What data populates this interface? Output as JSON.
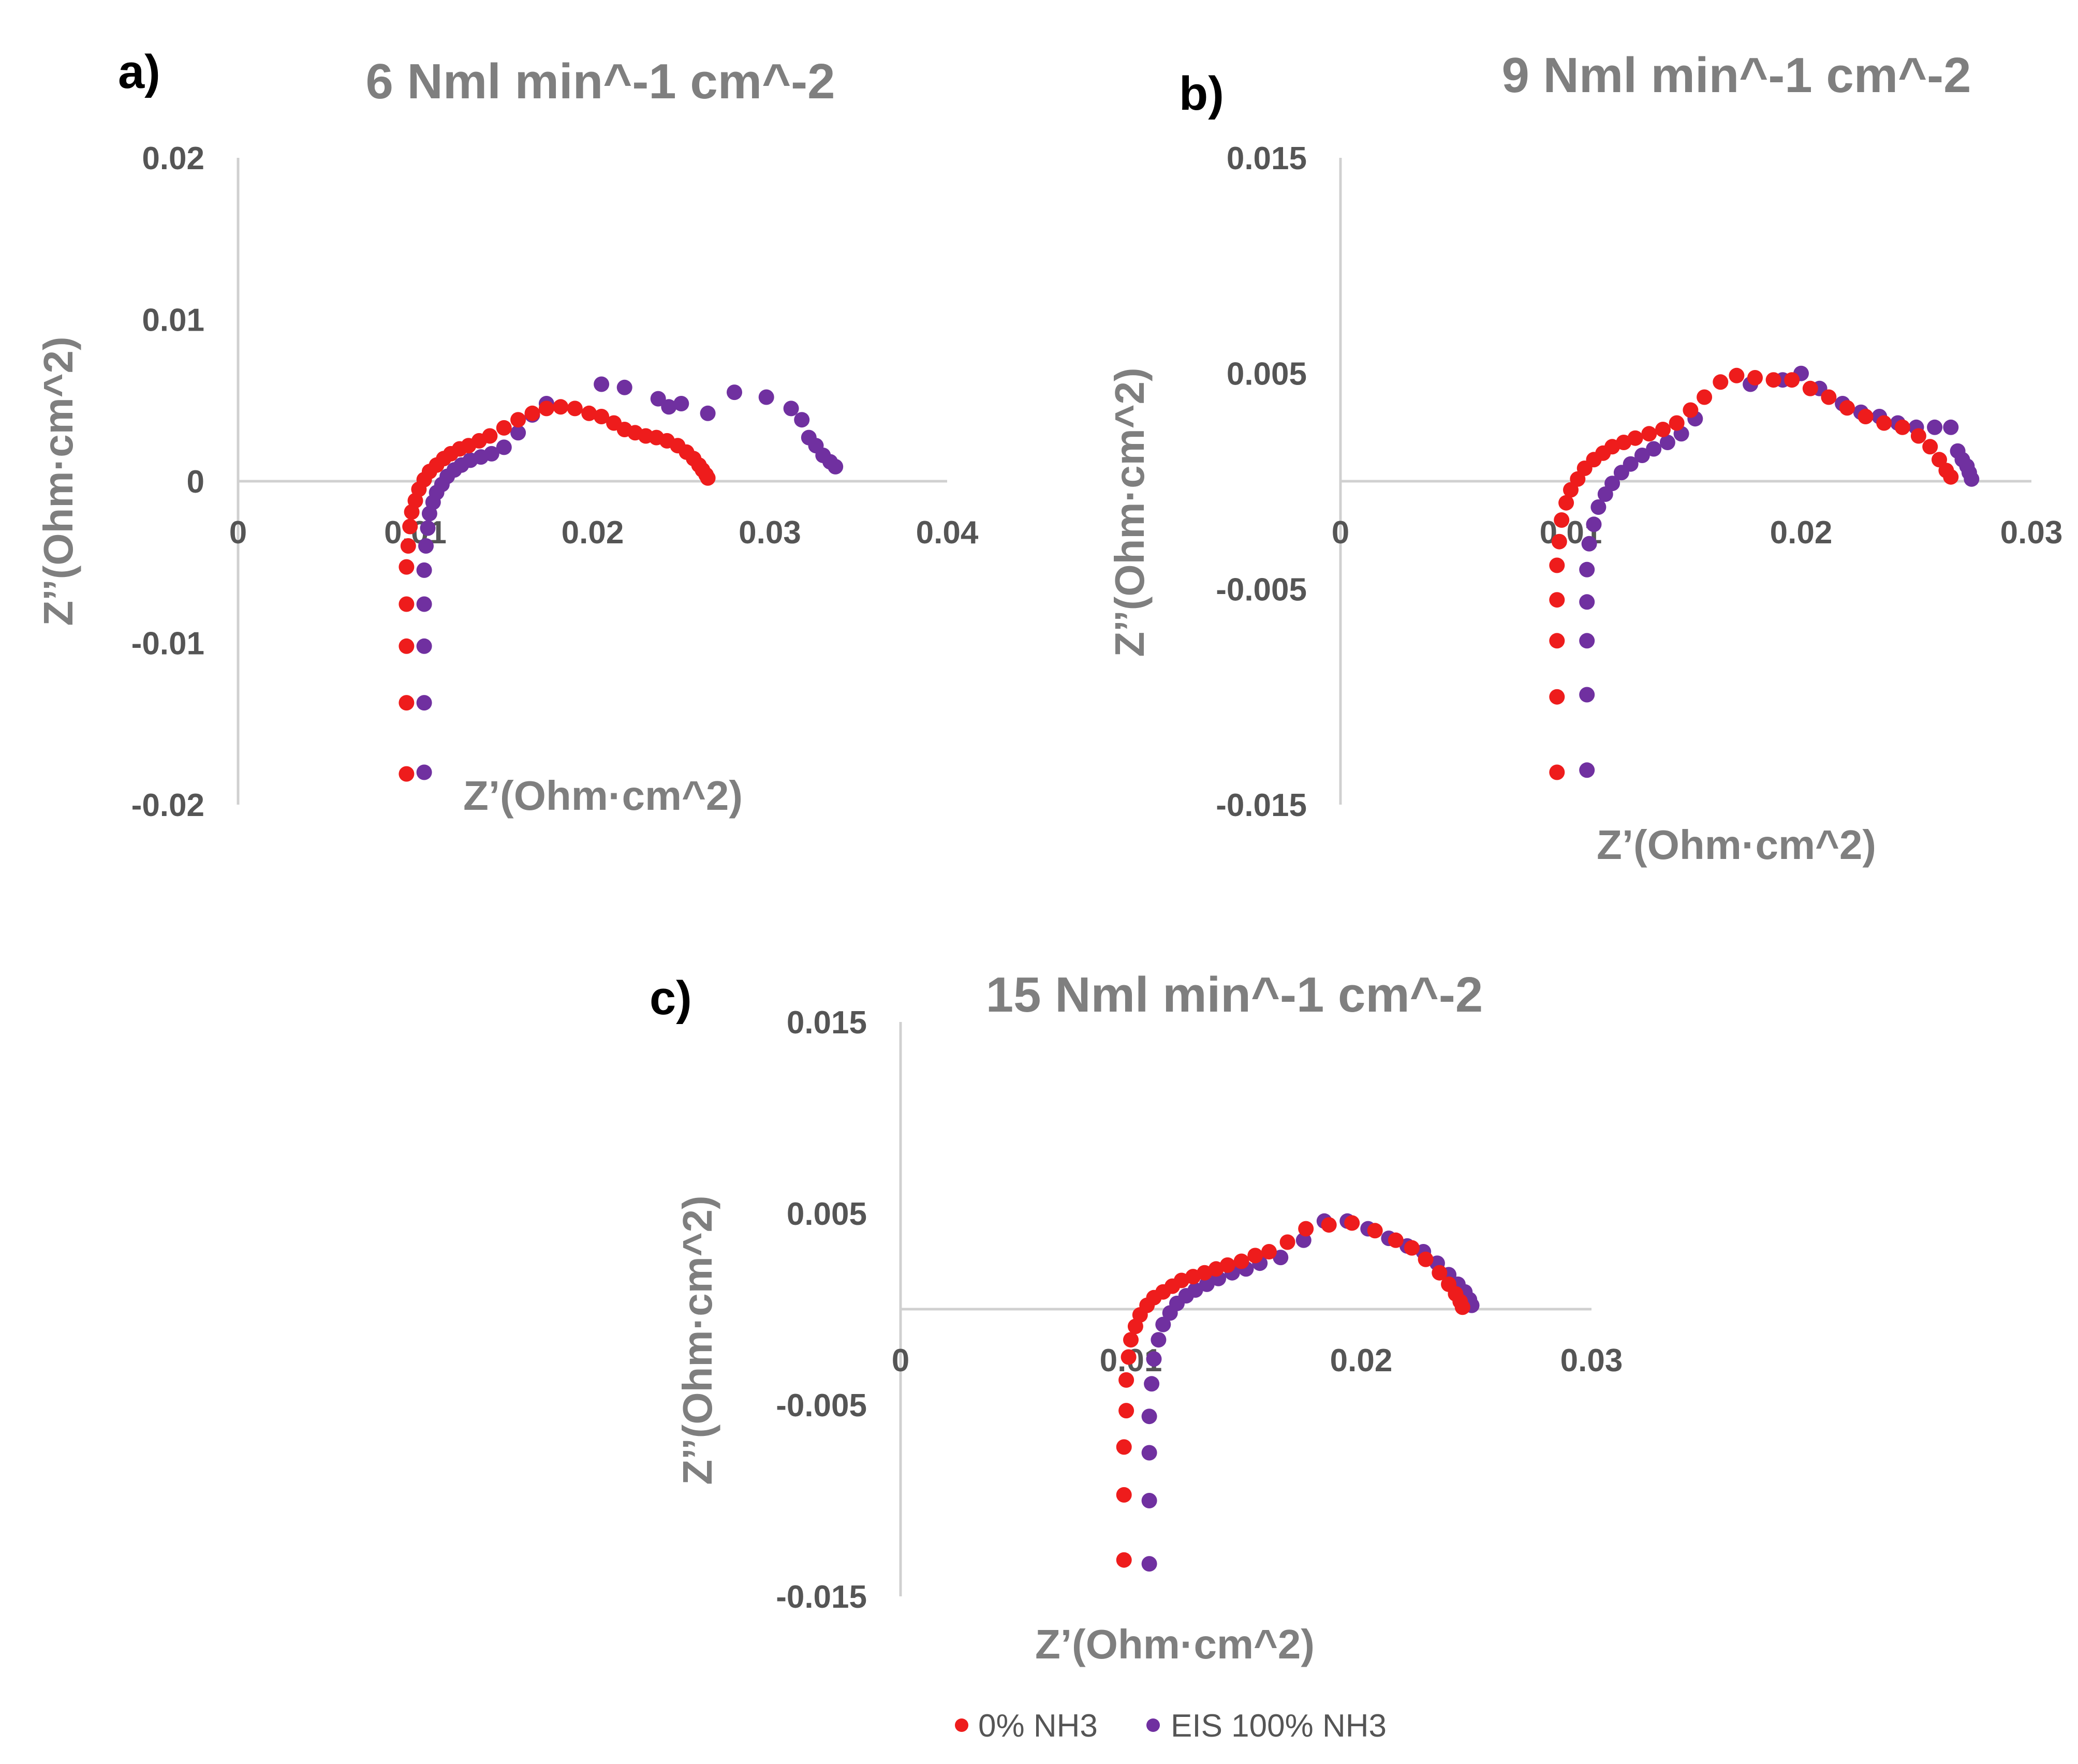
{
  "chart_data": [
    {
      "type": "scatter",
      "panel": "a)",
      "title": "6 Nml min^-1 cm^-2",
      "xlabel": "Z’(Ohm·cm^2)",
      "ylabel": "Z’’(Ohm·cm^2)",
      "xlim": [
        0,
        0.04
      ],
      "ylim": [
        -0.02,
        0.02
      ],
      "xticks": [
        {
          "v": 0,
          "label": "0"
        },
        {
          "v": 0.01,
          "label": "0.01"
        },
        {
          "v": 0.02,
          "label": "0.02"
        },
        {
          "v": 0.03,
          "label": "0.03"
        },
        {
          "v": 0.04,
          "label": "0.04"
        }
      ],
      "yticks": [
        {
          "v": 0.02,
          "label": "0.02"
        },
        {
          "v": 0.01,
          "label": "0.01"
        },
        {
          "v": 0,
          "label": "0"
        },
        {
          "v": -0.01,
          "label": "-0.01"
        },
        {
          "v": -0.02,
          "label": "-0.02"
        }
      ],
      "series": [
        {
          "name": "0% NH3",
          "x": [
            0.0095,
            0.0095,
            0.0095,
            0.0095,
            0.0095,
            0.0096,
            0.0097,
            0.0098,
            0.01,
            0.0102,
            0.0105,
            0.0108,
            0.0112,
            0.0116,
            0.012,
            0.0125,
            0.013,
            0.0136,
            0.0142,
            0.015,
            0.0158,
            0.0166,
            0.0174,
            0.0182,
            0.019,
            0.0198,
            0.0205,
            0.0212,
            0.0218,
            0.0224,
            0.023,
            0.0236,
            0.0242,
            0.0248,
            0.0253,
            0.0257,
            0.026,
            0.0262,
            0.0264,
            0.0265
          ],
          "y": [
            -0.0181,
            -0.0137,
            -0.0102,
            -0.0076,
            -0.0053,
            -0.004,
            -0.0028,
            -0.0019,
            -0.0012,
            -0.0005,
            0.0001,
            0.0006,
            0.001,
            0.0014,
            0.0017,
            0.002,
            0.0022,
            0.0025,
            0.0028,
            0.0033,
            0.0038,
            0.0042,
            0.0045,
            0.0046,
            0.0045,
            0.0042,
            0.004,
            0.0036,
            0.0032,
            0.003,
            0.0028,
            0.0027,
            0.0025,
            0.0022,
            0.0018,
            0.0014,
            0.001,
            0.0007,
            0.0004,
            0.0002
          ]
        },
        {
          "name": "EIS 100% NH3",
          "x": [
            0.0105,
            0.0105,
            0.0105,
            0.0105,
            0.0105,
            0.0106,
            0.0107,
            0.0108,
            0.011,
            0.0112,
            0.0115,
            0.0118,
            0.0122,
            0.0126,
            0.0131,
            0.0137,
            0.0143,
            0.015,
            0.0158,
            0.0166,
            0.0174,
            0.0205,
            0.0218,
            0.0237,
            0.0243,
            0.025,
            0.0265,
            0.028,
            0.0298,
            0.0312,
            0.0318,
            0.0322,
            0.0326,
            0.033,
            0.0334,
            0.0337
          ],
          "y": [
            -0.018,
            -0.0137,
            -0.0102,
            -0.0076,
            -0.0055,
            -0.004,
            -0.0029,
            -0.002,
            -0.0013,
            -0.0007,
            -0.0002,
            0.0003,
            0.0007,
            0.001,
            0.0013,
            0.0015,
            0.0017,
            0.0021,
            0.003,
            0.0041,
            0.0048,
            0.006,
            0.0058,
            0.0051,
            0.0046,
            0.0048,
            0.0042,
            0.0055,
            0.0052,
            0.0045,
            0.0038,
            0.0027,
            0.0022,
            0.0016,
            0.0012,
            0.0009
          ]
        }
      ]
    },
    {
      "type": "scatter",
      "panel": "b)",
      "title": "9 Nml min^-1 cm^-2",
      "xlabel": "Z’(Ohm·cm^2)",
      "ylabel": "Z’’(Ohm·cm^2)",
      "xlim": [
        0,
        0.03
      ],
      "ylim": [
        -0.015,
        0.015
      ],
      "xticks": [
        {
          "v": 0,
          "label": "0"
        },
        {
          "v": 0.01,
          "label": "0.01"
        },
        {
          "v": 0.02,
          "label": "0.02"
        },
        {
          "v": 0.03,
          "label": "0.03"
        }
      ],
      "yticks": [
        {
          "v": 0.015,
          "label": "0.015"
        },
        {
          "v": 0.005,
          "label": "0.005"
        },
        {
          "v": -0.005,
          "label": "-0.005"
        },
        {
          "v": -0.015,
          "label": "-0.015"
        }
      ],
      "series": [
        {
          "name": "0% NH3",
          "x": [
            0.0094,
            0.0094,
            0.0094,
            0.0094,
            0.0094,
            0.0095,
            0.0096,
            0.0098,
            0.01,
            0.0103,
            0.0106,
            0.011,
            0.0114,
            0.0118,
            0.0123,
            0.0128,
            0.0134,
            0.014,
            0.0146,
            0.0152,
            0.0158,
            0.0165,
            0.0172,
            0.018,
            0.0188,
            0.0196,
            0.0204,
            0.0212,
            0.022,
            0.0228,
            0.0236,
            0.0244,
            0.0251,
            0.0256,
            0.026,
            0.0263,
            0.0265
          ],
          "y": [
            -0.0135,
            -0.01,
            -0.0074,
            -0.0055,
            -0.0039,
            -0.0028,
            -0.0018,
            -0.001,
            -0.0004,
            0.0001,
            0.0006,
            0.001,
            0.0013,
            0.0016,
            0.0018,
            0.002,
            0.0022,
            0.0024,
            0.0027,
            0.0033,
            0.0039,
            0.0046,
            0.0049,
            0.0048,
            0.0047,
            0.0047,
            0.0043,
            0.0039,
            0.0034,
            0.003,
            0.0027,
            0.0025,
            0.0021,
            0.0016,
            0.001,
            0.0005,
            0.0002
          ]
        },
        {
          "name": "EIS 100% NH3",
          "x": [
            0.0107,
            0.0107,
            0.0107,
            0.0107,
            0.0107,
            0.0108,
            0.011,
            0.0112,
            0.0115,
            0.0118,
            0.0122,
            0.0126,
            0.0131,
            0.0136,
            0.0142,
            0.0148,
            0.0154,
            0.0178,
            0.0192,
            0.02,
            0.0208,
            0.0218,
            0.0226,
            0.0234,
            0.0242,
            0.025,
            0.0258,
            0.0265,
            0.0268,
            0.027,
            0.0272,
            0.0273,
            0.0274
          ],
          "y": [
            -0.0134,
            -0.0099,
            -0.0074,
            -0.0056,
            -0.0041,
            -0.0029,
            -0.002,
            -0.0012,
            -0.0006,
            -0.0001,
            0.0004,
            0.0008,
            0.0012,
            0.0015,
            0.0018,
            0.0022,
            0.0029,
            0.0045,
            0.0047,
            0.005,
            0.0043,
            0.0036,
            0.0032,
            0.003,
            0.0027,
            0.0025,
            0.0025,
            0.0025,
            0.0014,
            0.001,
            0.0007,
            0.0004,
            0.0001
          ]
        }
      ]
    },
    {
      "type": "scatter",
      "panel": "c)",
      "title": "15 Nml min^-1 cm^-2",
      "xlabel": "Z’(Ohm·cm^2)",
      "ylabel": "Z’’(Ohm·cm^2)",
      "xlim": [
        0,
        0.03
      ],
      "ylim": [
        -0.015,
        0.015
      ],
      "xticks": [
        {
          "v": 0,
          "label": "0"
        },
        {
          "v": 0.01,
          "label": "0.01"
        },
        {
          "v": 0.02,
          "label": "0.02"
        },
        {
          "v": 0.03,
          "label": "0.03"
        }
      ],
      "yticks": [
        {
          "v": 0.015,
          "label": "0.015"
        },
        {
          "v": 0.005,
          "label": "0.005"
        },
        {
          "v": -0.005,
          "label": "-0.005"
        },
        {
          "v": -0.015,
          "label": "-0.015"
        }
      ],
      "series": [
        {
          "name": "0% NH3",
          "x": [
            0.0097,
            0.0097,
            0.0097,
            0.0098,
            0.0098,
            0.0099,
            0.01,
            0.0102,
            0.0104,
            0.0107,
            0.011,
            0.0114,
            0.0118,
            0.0122,
            0.0127,
            0.0132,
            0.0137,
            0.0142,
            0.0148,
            0.0154,
            0.016,
            0.0168,
            0.0176,
            0.0186,
            0.0196,
            0.0206,
            0.0215,
            0.0222,
            0.0228,
            0.0234,
            0.0238,
            0.0241,
            0.0243,
            0.0244
          ],
          "y": [
            -0.0131,
            -0.0097,
            -0.0072,
            -0.0053,
            -0.0037,
            -0.0025,
            -0.0016,
            -0.0009,
            -0.0003,
            0.0002,
            0.0006,
            0.0009,
            0.0012,
            0.0015,
            0.0017,
            0.0019,
            0.0021,
            0.0023,
            0.0025,
            0.0028,
            0.003,
            0.0035,
            0.0042,
            0.0044,
            0.0045,
            0.0041,
            0.0036,
            0.0032,
            0.0026,
            0.0019,
            0.0013,
            0.0008,
            0.0004,
            0.0001
          ]
        },
        {
          "name": "EIS 100% NH3",
          "x": [
            0.0108,
            0.0108,
            0.0108,
            0.0108,
            0.0109,
            0.011,
            0.0112,
            0.0114,
            0.0117,
            0.012,
            0.0124,
            0.0128,
            0.0133,
            0.0138,
            0.0144,
            0.015,
            0.0156,
            0.0165,
            0.0175,
            0.0184,
            0.0194,
            0.0203,
            0.0212,
            0.022,
            0.0227,
            0.0233,
            0.0238,
            0.0242,
            0.0245,
            0.0247,
            0.0248
          ],
          "y": [
            -0.0133,
            -0.01,
            -0.0075,
            -0.0056,
            -0.0039,
            -0.0026,
            -0.0016,
            -0.0008,
            -0.0002,
            0.0003,
            0.0007,
            0.001,
            0.0013,
            0.0016,
            0.0019,
            0.0021,
            0.0024,
            0.0027,
            0.0036,
            0.0046,
            0.0046,
            0.0042,
            0.0037,
            0.0033,
            0.003,
            0.0024,
            0.0018,
            0.0013,
            0.0009,
            0.0005,
            0.0002
          ]
        }
      ]
    }
  ],
  "legend": [
    {
      "label": "0% NH3",
      "color": "#ee1c1c"
    },
    {
      "label": "EIS 100% NH3",
      "color": "#7030a0"
    }
  ],
  "colors": {
    "axis": "#d0d0d0",
    "text": "#7f7f7f"
  }
}
